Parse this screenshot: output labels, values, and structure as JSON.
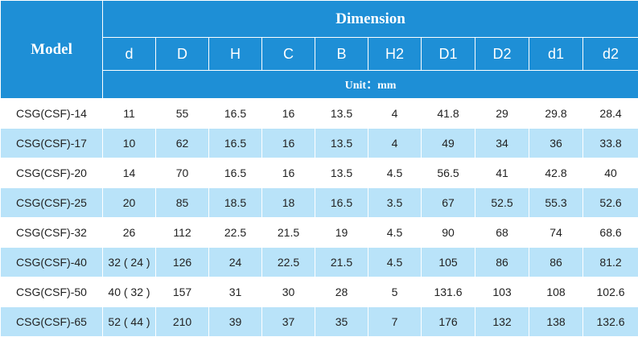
{
  "table": {
    "model_header": "Model",
    "dimension_header": "Dimension",
    "unit_label": "Unit：mm",
    "columns": [
      "d",
      "D",
      "H",
      "C",
      "B",
      "H2",
      "D1",
      "D2",
      "d1",
      "d2"
    ],
    "rows": [
      {
        "model": "CSG(CSF)-14",
        "values": [
          "11",
          "55",
          "16.5",
          "16",
          "13.5",
          "4",
          "41.8",
          "29",
          "29.8",
          "28.4"
        ],
        "shade": "white"
      },
      {
        "model": "CSG(CSF)-17",
        "values": [
          "10",
          "62",
          "16.5",
          "16",
          "13.5",
          "4",
          "49",
          "34",
          "36",
          "33.8"
        ],
        "shade": "blue"
      },
      {
        "model": "CSG(CSF)-20",
        "values": [
          "14",
          "70",
          "16.5",
          "16",
          "13.5",
          "4.5",
          "56.5",
          "41",
          "42.8",
          "40"
        ],
        "shade": "white"
      },
      {
        "model": "CSG(CSF)-25",
        "values": [
          "20",
          "85",
          "18.5",
          "18",
          "16.5",
          "3.5",
          "67",
          "52.5",
          "55.3",
          "52.6"
        ],
        "shade": "blue"
      },
      {
        "model": "CSG(CSF)-32",
        "values": [
          "26",
          "112",
          "22.5",
          "21.5",
          "19",
          "4.5",
          "90",
          "68",
          "74",
          "68.6"
        ],
        "shade": "white"
      },
      {
        "model": "CSG(CSF)-40",
        "values": [
          "32 ( 24 )",
          "126",
          "24",
          "22.5",
          "21.5",
          "4.5",
          "105",
          "86",
          "86",
          "81.2"
        ],
        "shade": "blue"
      },
      {
        "model": "CSG(CSF)-50",
        "values": [
          "40 ( 32 )",
          "157",
          "31",
          "30",
          "28",
          "5",
          "131.6",
          "103",
          "108",
          "102.6"
        ],
        "shade": "white"
      },
      {
        "model": "CSG(CSF)-65",
        "values": [
          "52 ( 44 )",
          "210",
          "39",
          "37",
          "35",
          "7",
          "176",
          "132",
          "138",
          "132.6"
        ],
        "shade": "blue"
      }
    ]
  },
  "colors": {
    "header_bg": "#1e8fd6",
    "header_text": "#ffffff",
    "row_alt_bg": "#b9e3f9",
    "row_bg": "#ffffff",
    "cell_text": "#222222"
  }
}
